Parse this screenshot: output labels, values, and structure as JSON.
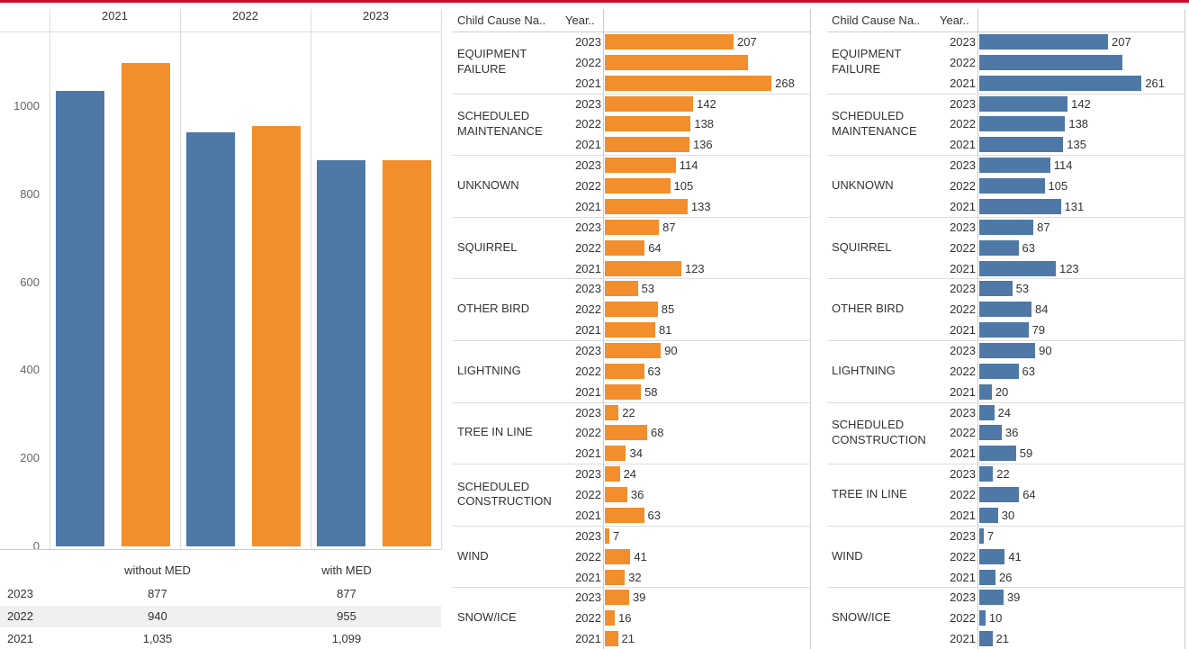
{
  "chart_data": [
    {
      "type": "bar",
      "categories": [
        "2021",
        "2022",
        "2023"
      ],
      "series": [
        {
          "name": "without MED",
          "color": "#4e79a7",
          "values": [
            1035,
            940,
            877
          ]
        },
        {
          "name": "with MED",
          "color": "#f28e2b",
          "values": [
            1099,
            955,
            877
          ]
        }
      ],
      "ylim": [
        0,
        1170
      ],
      "yticks": [
        0,
        200,
        400,
        600,
        800,
        1000
      ]
    },
    {
      "type": "hbar",
      "headers": [
        "Child Cause Na..",
        "Year.."
      ],
      "color": "#f28e2b",
      "xlim": [
        0,
        330
      ],
      "categories": [
        "EQUIPMENT FAILURE",
        "SCHEDULED MAINTENANCE",
        "UNKNOWN",
        "SQUIRREL",
        "OTHER BIRD",
        "LIGHTNING",
        "TREE IN LINE",
        "SCHEDULED CONSTRUCTION",
        "WIND",
        "SNOW/ICE"
      ],
      "series": [
        {
          "name": "2023",
          "values": [
            207,
            142,
            114,
            87,
            53,
            90,
            22,
            24,
            7,
            39
          ]
        },
        {
          "name": "2022",
          "values": [
            230,
            138,
            105,
            64,
            85,
            63,
            68,
            36,
            41,
            16
          ],
          "value_labels": [
            null,
            "138",
            "105",
            "64",
            "85",
            "63",
            "68",
            "36",
            "41",
            "16"
          ]
        },
        {
          "name": "2021",
          "values": [
            268,
            136,
            133,
            123,
            81,
            58,
            34,
            63,
            32,
            21
          ]
        }
      ]
    },
    {
      "type": "hbar",
      "headers": [
        "Child Cause Na..",
        "Year.."
      ],
      "color": "#4e79a7",
      "xlim": [
        0,
        330
      ],
      "categories": [
        "EQUIPMENT FAILURE",
        "SCHEDULED MAINTENANCE",
        "UNKNOWN",
        "SQUIRREL",
        "OTHER BIRD",
        "LIGHTNING",
        "SCHEDULED CONSTRUCTION",
        "TREE IN LINE",
        "WIND",
        "SNOW/ICE"
      ],
      "series": [
        {
          "name": "2023",
          "values": [
            207,
            142,
            114,
            87,
            53,
            90,
            24,
            22,
            7,
            39
          ]
        },
        {
          "name": "2022",
          "values": [
            230,
            138,
            105,
            63,
            84,
            63,
            36,
            64,
            41,
            10
          ],
          "value_labels": [
            null,
            "138",
            "105",
            "63",
            "84",
            "63",
            "36",
            "64",
            "41",
            "10"
          ]
        },
        {
          "name": "2021",
          "values": [
            261,
            135,
            131,
            123,
            79,
            20,
            59,
            30,
            26,
            21
          ]
        }
      ]
    }
  ],
  "table": {
    "rows": [
      [
        "2023",
        "877",
        "877"
      ],
      [
        "2022",
        "940",
        "955"
      ],
      [
        "2021",
        "1,035",
        "1,099"
      ]
    ]
  }
}
